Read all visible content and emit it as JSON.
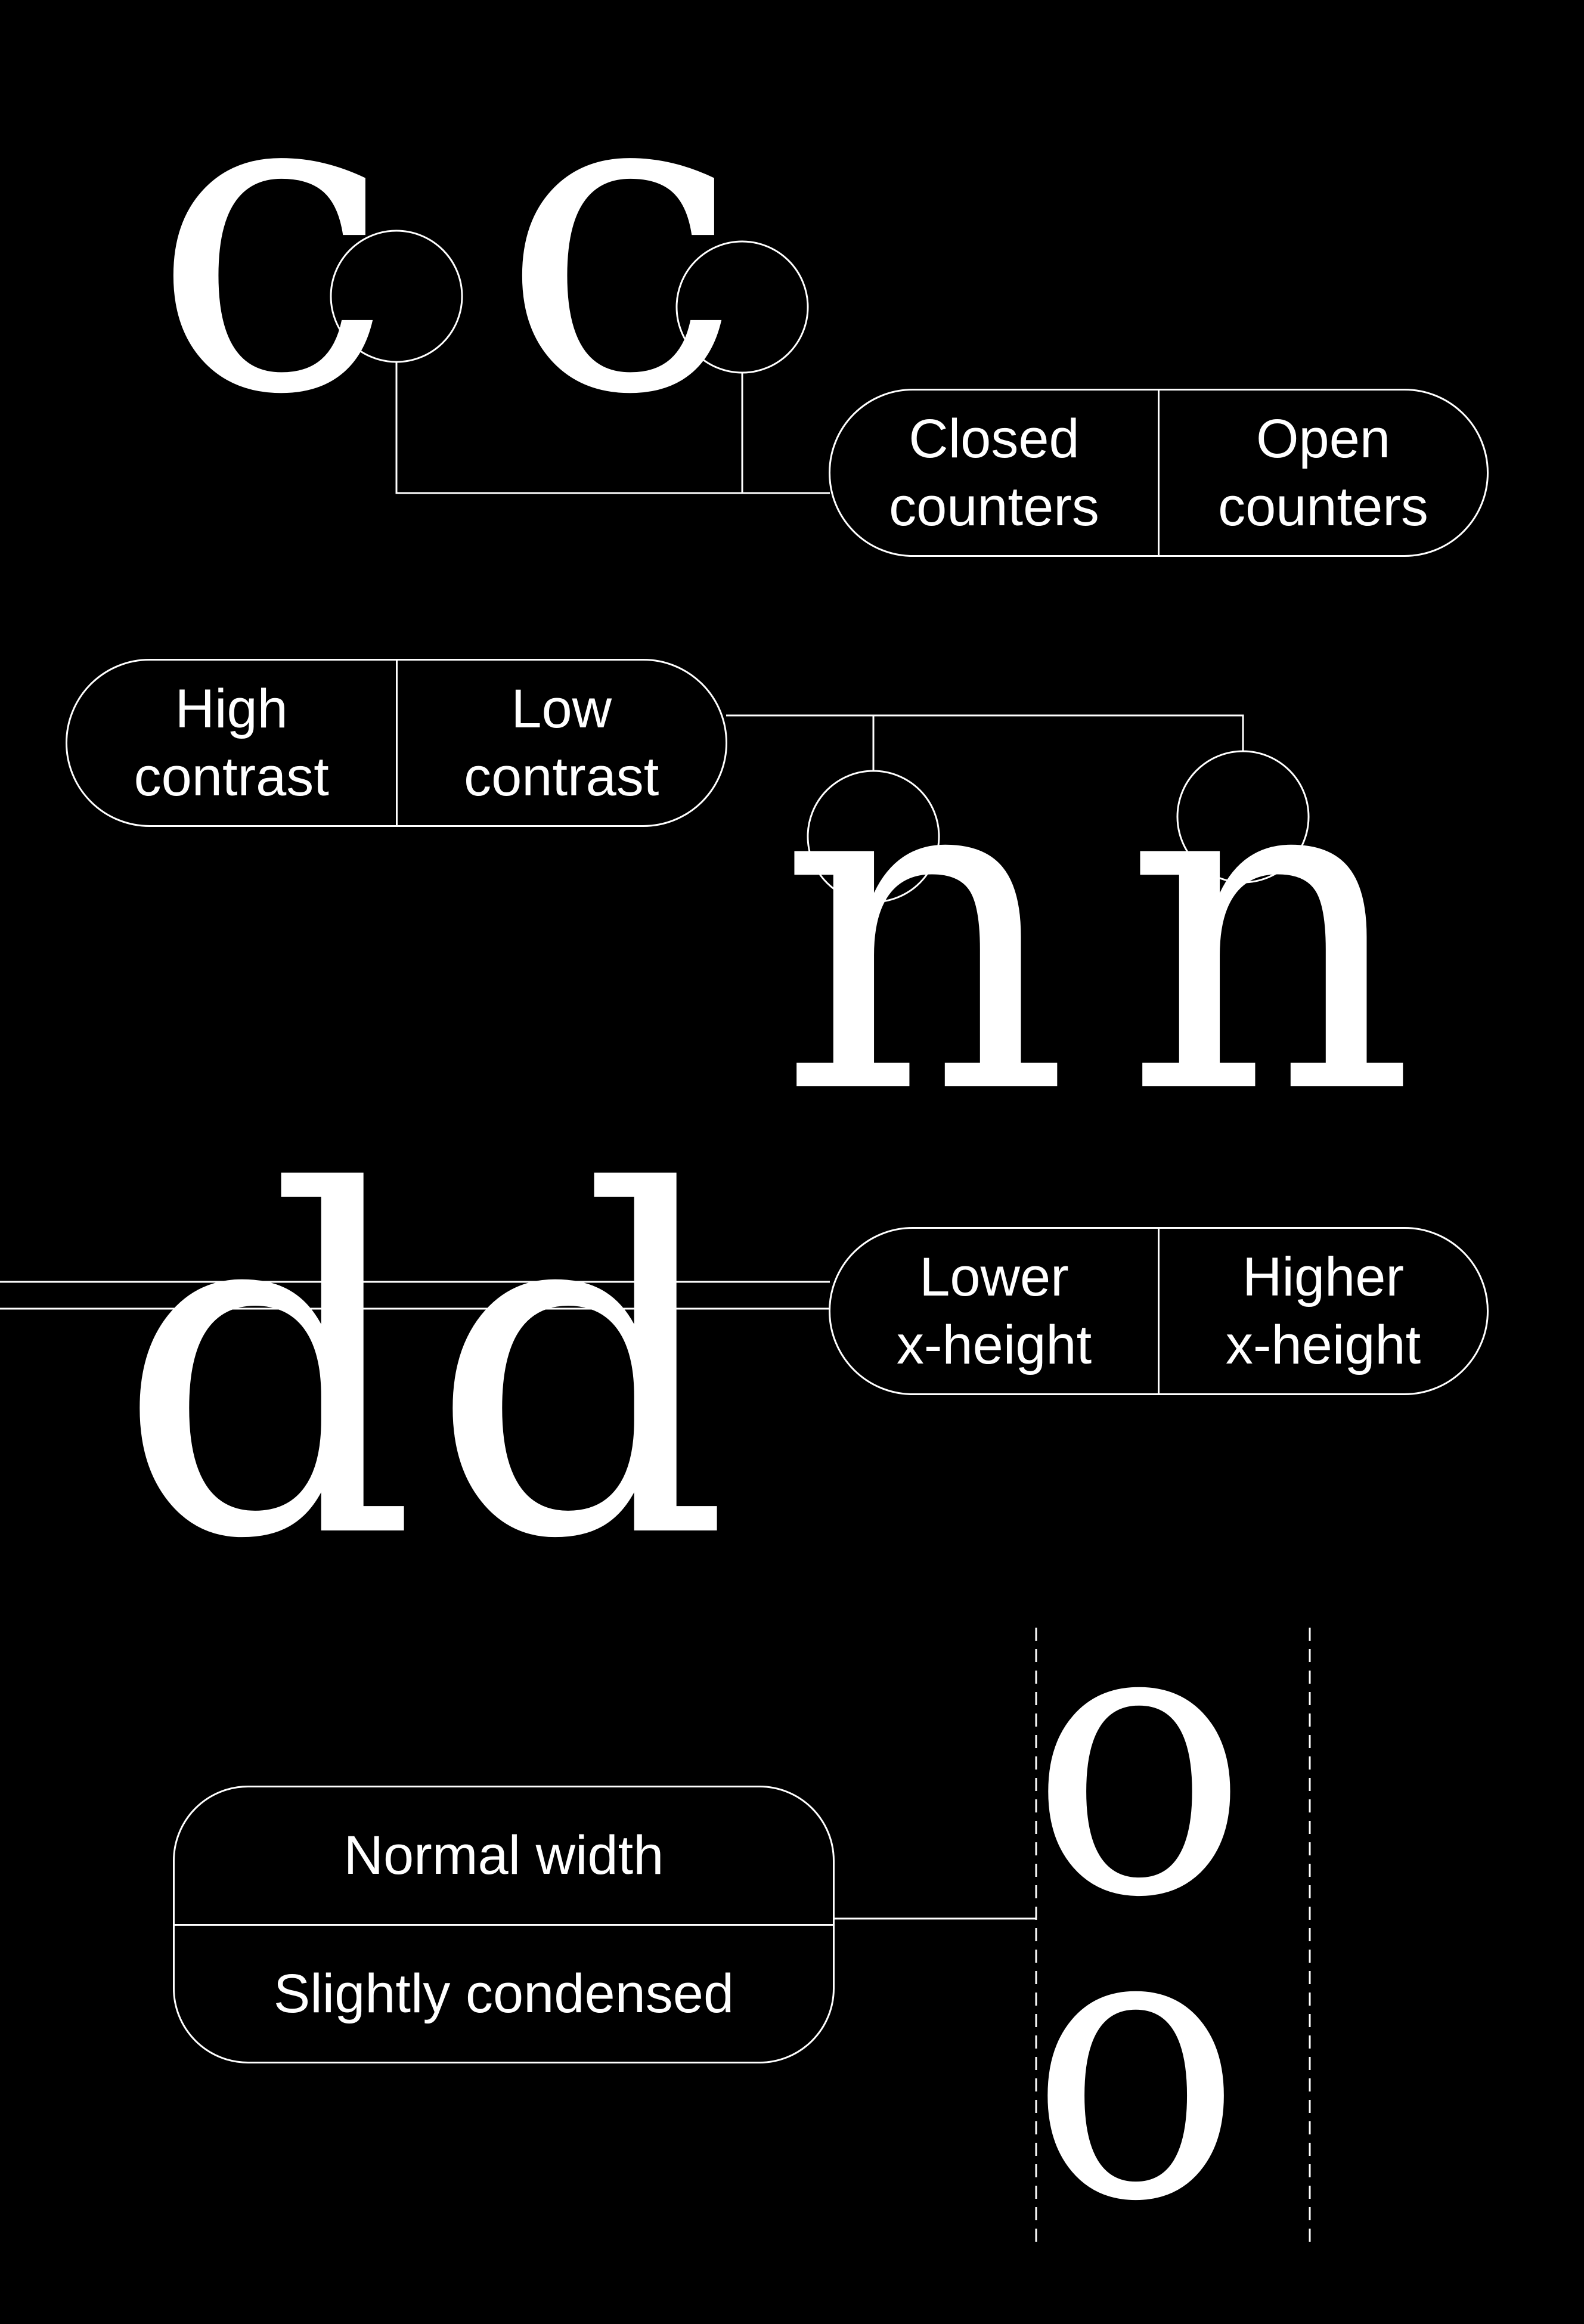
{
  "colors": {
    "background": "#000000",
    "foreground": "#ffffff"
  },
  "glyphs": {
    "counters_pair": [
      "c",
      "c"
    ],
    "contrast_pair": [
      "n",
      "n"
    ],
    "xheight_pair": [
      "d",
      "d"
    ],
    "width_pair": [
      "o",
      "o"
    ]
  },
  "labels": {
    "counters": {
      "left": "Closed\ncounters",
      "right": "Open\ncounters"
    },
    "contrast": {
      "left": "High\ncontrast",
      "right": "Low\ncontrast"
    },
    "xheight": {
      "left": "Lower\nx-height",
      "right": "Higher\nx-height"
    },
    "width": {
      "top": "Normal width",
      "bottom": "Slightly condensed"
    }
  }
}
